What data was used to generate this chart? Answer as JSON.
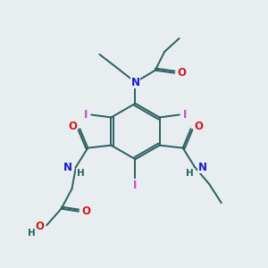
{
  "bg_color": "#e8edf0",
  "bond_color": "#2a6060",
  "atom_colors": {
    "N": "#1a1acc",
    "O": "#cc1a1a",
    "I": "#cc44cc",
    "C": "#2a6060",
    "H": "#2a6060"
  },
  "bond_width": 1.4,
  "font_size_atom": 8.5,
  "fig_size": [
    3.0,
    3.0
  ],
  "dpi": 100
}
